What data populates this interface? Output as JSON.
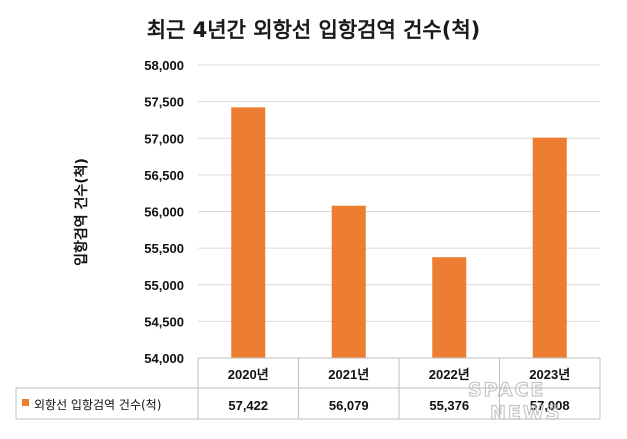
{
  "chart_data": {
    "type": "bar",
    "title": "최근 4년간 외항선 입항검역 건수(척)",
    "ylabel": "입항검역 건수(척)",
    "xlabel": "",
    "categories": [
      "2020년",
      "2021년",
      "2022년",
      "2023년"
    ],
    "series": [
      {
        "name": "외항선 입항검역 건수(척)",
        "values": [
          57422,
          56079,
          55376,
          57008
        ]
      }
    ],
    "value_labels": [
      "57,422",
      "56,079",
      "55,376",
      "57,008"
    ],
    "ylim": [
      54000,
      58000
    ],
    "yticks": [
      54000,
      54500,
      55000,
      55500,
      56000,
      56500,
      57000,
      57500,
      58000
    ],
    "ytick_labels": [
      "54,000",
      "54,500",
      "55,000",
      "55,500",
      "56,000",
      "56,500",
      "57,000",
      "57,500",
      "58,000"
    ],
    "grid": true,
    "legend": "data-table-left",
    "bar_color": "#ed7d31"
  },
  "watermark": {
    "line1": "SPACE",
    "line2": "NEWS"
  }
}
